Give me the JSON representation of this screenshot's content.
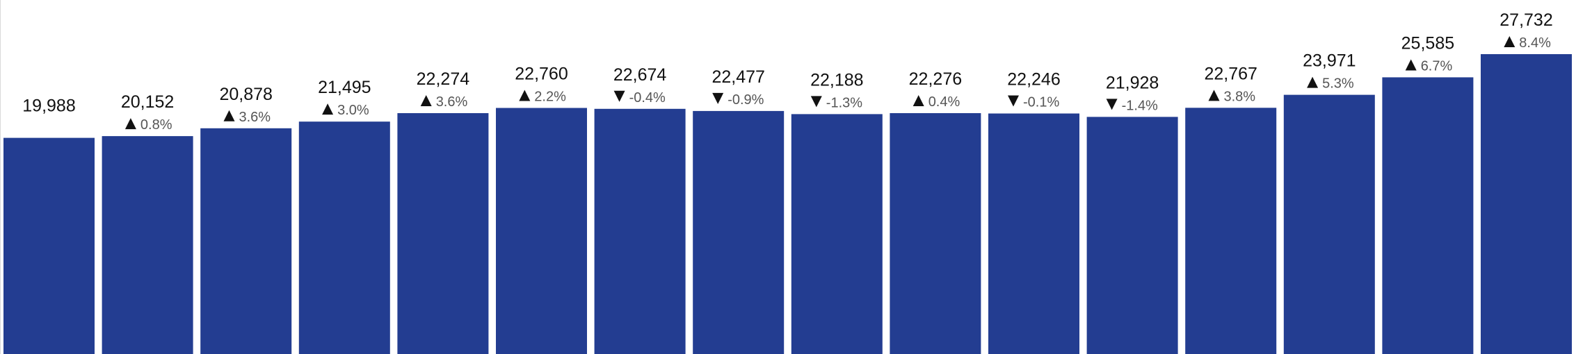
{
  "colors": {
    "bar": "#233D91",
    "value_text": "#111111",
    "change_text": "#555555",
    "arrow": "#111111"
  },
  "chart_data": {
    "type": "bar",
    "title": "",
    "xlabel": "",
    "ylabel": "",
    "ylim": [
      0,
      27732
    ],
    "grid": false,
    "legend": "none",
    "values": [
      19988,
      20152,
      20878,
      21495,
      22274,
      22760,
      22674,
      22477,
      22188,
      22276,
      22246,
      21928,
      22767,
      23971,
      25585,
      27732
    ],
    "value_labels": [
      "19,988",
      "20,152",
      "20,878",
      "21,495",
      "22,274",
      "22,760",
      "22,674",
      "22,477",
      "22,188",
      "22,276",
      "22,246",
      "21,928",
      "22,767",
      "23,971",
      "25,585",
      "27,732"
    ],
    "changes": [
      null,
      0.8,
      3.6,
      3.0,
      3.6,
      2.2,
      -0.4,
      -0.9,
      -1.3,
      0.4,
      -0.1,
      -1.4,
      3.8,
      5.3,
      6.7,
      8.4
    ],
    "change_labels": [
      "",
      "0.8%",
      "3.6%",
      "3.0%",
      "3.6%",
      "2.2%",
      "-0.4%",
      "-0.9%",
      "-1.3%",
      "0.4%",
      "-0.1%",
      "-1.4%",
      "3.8%",
      "5.3%",
      "6.7%",
      "8.4%"
    ],
    "change_directions": [
      "",
      "up",
      "up",
      "up",
      "up",
      "up",
      "down",
      "down",
      "down",
      "up",
      "down",
      "down",
      "up",
      "up",
      "up",
      "up"
    ]
  }
}
